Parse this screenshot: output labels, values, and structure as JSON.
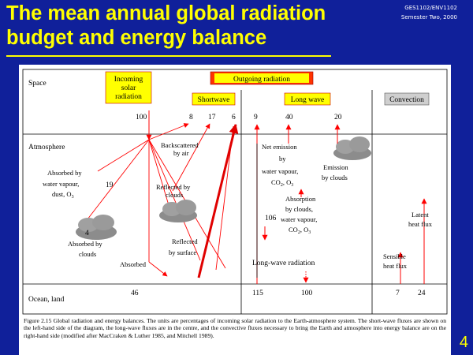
{
  "slide": {
    "title_line1": "The mean annual global radiation",
    "title_line2": "budget and energy balance",
    "course_code": "GES1102/ENV1102",
    "semester": "Semester Two, 2000",
    "page_number": "4"
  },
  "diagram": {
    "layers": {
      "space": "Space",
      "atmosphere": "Atmosphere",
      "ocean": "Ocean, land"
    },
    "headers": {
      "incoming_1": "Incoming",
      "incoming_2": "solar",
      "incoming_3": "radiation",
      "outgoing": "Outgoing radiation",
      "shortwave": "Shortwave",
      "longwave": "Long wave",
      "convection": "Convection"
    },
    "values": {
      "incoming": "100",
      "backscatter": "8",
      "reflected_clouds": "17",
      "reflected_surface": "6",
      "lw_surface_escape": "9",
      "lw_net_emission": "40",
      "lw_clouds_emission": "20",
      "absorbed_vapour": "19",
      "absorbed_clouds": "4",
      "absorbed_surface": "46",
      "lw_absorbed_atm": "106",
      "lw_surface": "115",
      "lw_down": "100",
      "sensible": "7",
      "latent": "24"
    },
    "labels": {
      "backscattered_1": "Backscattered",
      "backscattered_2": "by air",
      "reflected_clouds_1": "Reflected by",
      "reflected_clouds_2": "clouds",
      "reflected_surface_1": "Reflected",
      "reflected_surface_2": "by surface",
      "absorbed_vapour_1": "Absorbed by",
      "absorbed_vapour_2": "water vapour,",
      "absorbed_vapour_3": "dust, O",
      "absorbed_clouds_1": "Absorbed by",
      "absorbed_clouds_2": "clouds",
      "absorbed": "Absorbed",
      "net_emission_1": "Net emission",
      "net_emission_2": "by",
      "net_emission_3": "water vapour,",
      "net_emission_4": "CO",
      "net_emission_5": ", O",
      "emission_clouds_1": "Emission",
      "emission_clouds_2": "by clouds",
      "absorption_1": "Absorption",
      "absorption_2": "by clouds,",
      "absorption_3": "water vapour,",
      "absorption_4": "CO",
      "absorption_5": ", O",
      "longwave_radiation": "Long-wave radiation",
      "latent_1": "Latent",
      "latent_2": "heat flux",
      "sensible_1": "Sensible",
      "sensible_2": "heat flux",
      "sub2": "2",
      "sub3": "3"
    },
    "colors": {
      "shortwave_arrow": "#ff0000",
      "thick_arrow": "#e00000",
      "box_fill": "#ffff00",
      "header_fill": "#ff3300"
    },
    "caption": "Figure 2.15 Global radiation and energy balances. The units are percentages of incoming solar radiation to the Earth-atmosphere system. The short-wave fluxes are shown on the left-hand side of the diagram, the long-wave fluxes are in the centre, and the convective fluxes necessary to bring the Earth and atmosphere into energy balance are on the right-hand side (modified after MacCraken & Luther 1985, and Mitchell 1989)."
  }
}
